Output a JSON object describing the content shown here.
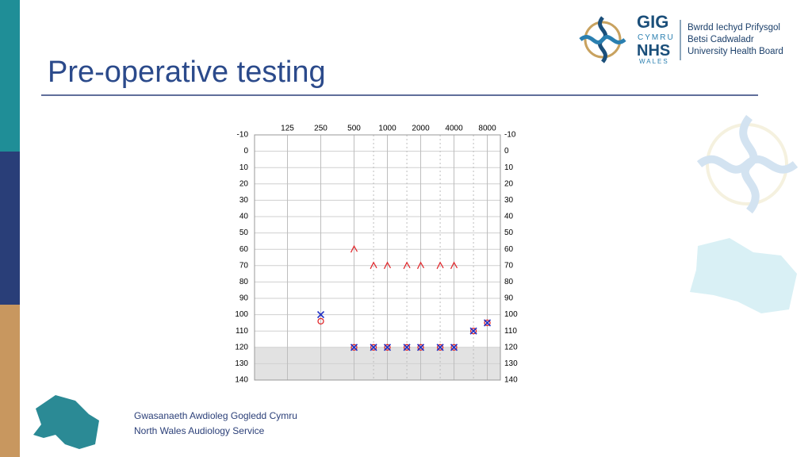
{
  "slide": {
    "title": "Pre-operative testing",
    "footer": [
      "Gwasanaeth Awdioleg Gogledd Cymru",
      "North Wales Audiology Service"
    ],
    "logo": {
      "mark": [
        "GIG",
        "CYMRU",
        "NHS",
        "WALES"
      ],
      "board": [
        "Bwrdd Iechyd Prifysgol",
        "Betsi Cadwaladr",
        "University Health Board"
      ]
    }
  },
  "chart_data": {
    "type": "scatter",
    "xscale": "log",
    "xlim": [
      63,
      10500
    ],
    "ylim": [
      -10,
      140
    ],
    "y_inverted": true,
    "xticks": [
      125,
      250,
      500,
      1000,
      2000,
      4000,
      8000
    ],
    "xticks_minor": [
      750,
      1500,
      3000,
      6000
    ],
    "yticks": [
      -10,
      0,
      10,
      20,
      30,
      40,
      50,
      60,
      70,
      80,
      90,
      100,
      110,
      120,
      130,
      140
    ],
    "y_labels_both_sides": true,
    "grid": true,
    "shaded_range": [
      120,
      140
    ],
    "x": [
      250,
      500,
      750,
      1000,
      1500,
      2000,
      3000,
      4000,
      6000,
      8000
    ],
    "series": [
      {
        "color": "#e0262a",
        "marker": "o",
        "values": [
          104,
          120,
          120,
          120,
          120,
          120,
          120,
          120,
          110,
          105
        ]
      },
      {
        "color": "#1f2fc4",
        "marker": "x",
        "values": [
          100,
          120,
          120,
          120,
          120,
          120,
          120,
          120,
          110,
          105
        ]
      },
      {
        "color": "#e0262a",
        "marker": "<",
        "values": [
          null,
          60,
          70,
          70,
          70,
          70,
          70,
          70,
          null,
          null
        ]
      }
    ]
  }
}
